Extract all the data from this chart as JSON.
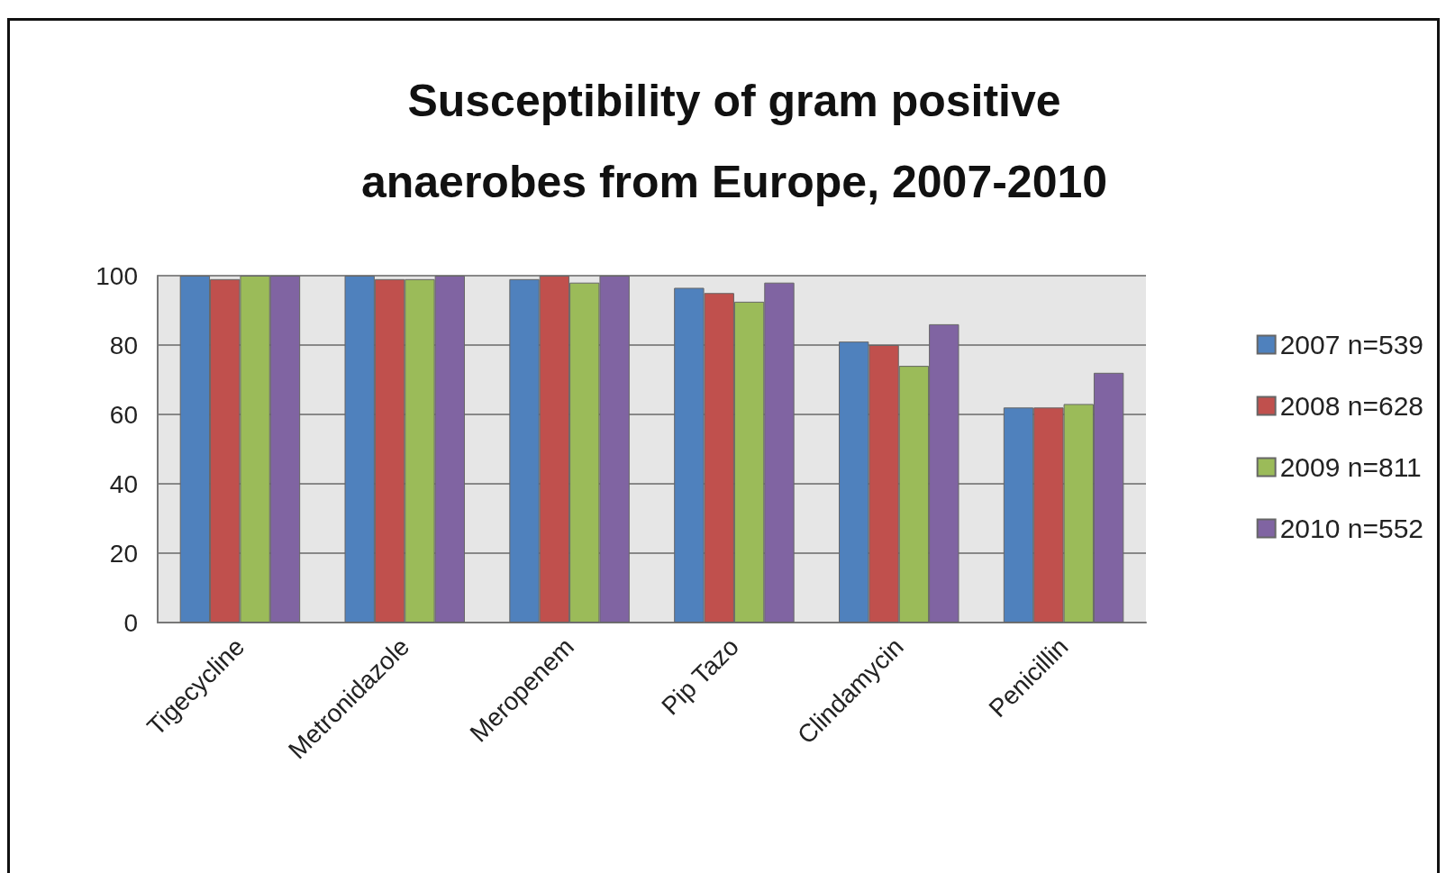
{
  "chart_data": {
    "type": "bar",
    "title": "Susceptibility of gram positive\nanaerobes from Europe, 2007-2010",
    "categories": [
      "Tigecycline",
      "Metronidazole",
      "Meropenem",
      "Pip Tazo",
      "Clindamycin",
      "Penicillin"
    ],
    "series": [
      {
        "name": "2007 n=539",
        "color": "#4f81bd",
        "values": [
          100,
          100,
          99,
          96.5,
          81,
          62
        ]
      },
      {
        "name": "2008 n=628",
        "color": "#c0504d",
        "values": [
          99,
          99,
          100,
          95,
          80,
          62
        ]
      },
      {
        "name": "2009 n=811",
        "color": "#9bbb59",
        "values": [
          100,
          99,
          98,
          92.5,
          74,
          63
        ]
      },
      {
        "name": "2010 n=552",
        "color": "#8064a2",
        "values": [
          100,
          100,
          100,
          98,
          86,
          72
        ]
      }
    ],
    "ylim": [
      0,
      100
    ],
    "yticks": [
      0,
      20,
      40,
      60,
      80,
      100
    ],
    "grid": "y",
    "legend": "right"
  }
}
